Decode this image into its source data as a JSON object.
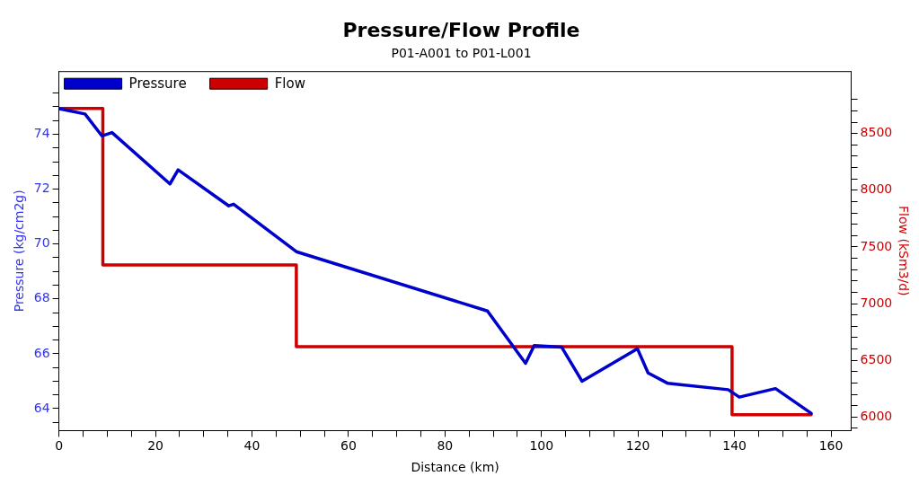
{
  "chart_data": {
    "type": "line",
    "title": "Pressure/Flow Profile",
    "subtitle": "P01-A001 to P01-L001",
    "xlabel": "Distance (km)",
    "ylabel": "Pressure (kg/cm2g)",
    "y2label": "Flow (kSm3/d)",
    "xlim": [
      0,
      164.2
    ],
    "ylim": [
      63.2,
      76.3
    ],
    "y2lim": [
      5880,
      9050
    ],
    "xticks": [
      0,
      {
        "value": 5,
        "label": null
      },
      20,
      {
        "value": 10,
        "label": null
      },
      {
        "value": 15,
        "label": null
      },
      {
        "value": 25,
        "label": null
      },
      {
        "value": 30,
        "label": null
      },
      {
        "value": 35,
        "label": null
      },
      40,
      {
        "value": 45,
        "label": null
      },
      {
        "value": 50,
        "label": null
      },
      {
        "value": 55,
        "label": null
      },
      60,
      {
        "value": 65,
        "label": null
      },
      {
        "value": 70,
        "label": null
      },
      {
        "value": 75,
        "label": null
      },
      80,
      {
        "value": 85,
        "label": null
      },
      {
        "value": 90,
        "label": null
      },
      {
        "value": 95,
        "label": null
      },
      100,
      {
        "value": 105,
        "label": null
      },
      {
        "value": 110,
        "label": null
      },
      {
        "value": 115,
        "label": null
      },
      120,
      {
        "value": 125,
        "label": null
      },
      {
        "value": 130,
        "label": null
      },
      {
        "value": 135,
        "label": null
      },
      140,
      {
        "value": 145,
        "label": null
      },
      {
        "value": 150,
        "label": null
      },
      {
        "value": 155,
        "label": null
      },
      160
    ],
    "yticks": [
      {
        "value": 63.5,
        "label": null
      },
      64,
      {
        "value": 64.5,
        "label": null
      },
      {
        "value": 65,
        "label": null
      },
      {
        "value": 65.5,
        "label": null
      },
      66,
      {
        "value": 66.5,
        "label": null
      },
      {
        "value": 67,
        "label": null
      },
      {
        "value": 67.5,
        "label": null
      },
      68,
      {
        "value": 68.5,
        "label": null
      },
      {
        "value": 69,
        "label": null
      },
      {
        "value": 69.5,
        "label": null
      },
      70,
      {
        "value": 70.5,
        "label": null
      },
      {
        "value": 71,
        "label": null
      },
      {
        "value": 71.5,
        "label": null
      },
      72,
      {
        "value": 72.5,
        "label": null
      },
      {
        "value": 73,
        "label": null
      },
      {
        "value": 73.5,
        "label": null
      },
      74,
      {
        "value": 74.5,
        "label": null
      },
      {
        "value": 75,
        "label": null
      },
      {
        "value": 75.5,
        "label": null
      }
    ],
    "y2ticks": [
      {
        "value": 5900,
        "label": null
      },
      6000,
      {
        "value": 6100,
        "label": null
      },
      {
        "value": 6200,
        "label": null
      },
      {
        "value": 6300,
        "label": null
      },
      {
        "value": 6400,
        "label": null
      },
      6500,
      {
        "value": 6600,
        "label": null
      },
      {
        "value": 6700,
        "label": null
      },
      {
        "value": 6800,
        "label": null
      },
      {
        "value": 6900,
        "label": null
      },
      7000,
      {
        "value": 7100,
        "label": null
      },
      {
        "value": 7200,
        "label": null
      },
      {
        "value": 7300,
        "label": null
      },
      {
        "value": 7400,
        "label": null
      },
      7500,
      {
        "value": 7600,
        "label": null
      },
      {
        "value": 7700,
        "label": null
      },
      {
        "value": 7800,
        "label": null
      },
      {
        "value": 7900,
        "label": null
      },
      8000,
      {
        "value": 8100,
        "label": null
      },
      {
        "value": 8200,
        "label": null
      },
      {
        "value": 8300,
        "label": null
      },
      {
        "value": 8400,
        "label": null
      },
      8500,
      {
        "value": 8600,
        "label": null
      },
      {
        "value": 8700,
        "label": null
      },
      {
        "value": 8800,
        "label": null
      }
    ],
    "grid": false,
    "legend": "top left",
    "marker": "none",
    "line_style": "solid",
    "series": [
      {
        "name": "Pressure",
        "color": "#0000cc",
        "x": [
          0,
          5.4,
          8.9,
          11.0,
          23.0,
          24.7,
          35.2,
          36.2,
          49.2,
          88.8,
          96.7,
          98.5,
          104.2,
          108.4,
          119.9,
          122.1,
          126.2,
          138.7,
          141.0,
          148.5,
          155.9
        ],
        "values": [
          74.93,
          74.74,
          73.94,
          74.06,
          72.19,
          72.7,
          71.39,
          71.45,
          69.72,
          67.56,
          65.65,
          66.3,
          66.24,
          65.0,
          66.18,
          65.3,
          64.92,
          64.69,
          64.42,
          64.73,
          63.83
        ]
      },
      {
        "name": "Flow",
        "color": "#cc0000",
        "type": "step",
        "axis": "y2",
        "x": [
          0,
          9.1,
          49.2,
          139.5,
          155.9
        ],
        "values": [
          8720,
          7340,
          6620,
          6020,
          6020
        ]
      }
    ]
  }
}
